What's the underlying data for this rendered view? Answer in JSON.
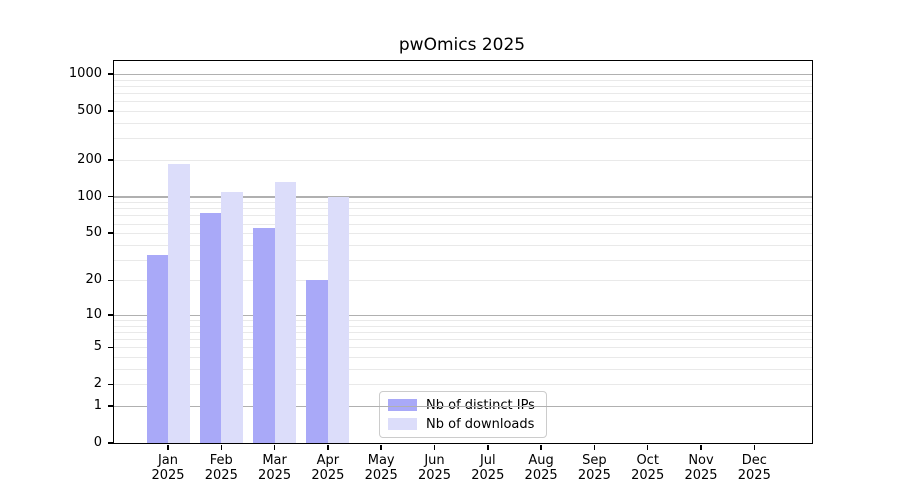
{
  "title": "pwOmics 2025",
  "colors": {
    "distinct_ips": "#a9a9f8",
    "downloads": "#dcddfa",
    "grid_major": "#b0b0b0",
    "grid_minor": "#e9e9e9",
    "axis": "#000000",
    "legend_border": "#cccccc"
  },
  "legend": {
    "items": [
      {
        "label": "Nb of distinct IPs",
        "color": "#a9a9f8"
      },
      {
        "label": "Nb of downloads",
        "color": "#dcddfa"
      }
    ]
  },
  "chart_data": {
    "type": "bar",
    "title": "pwOmics 2025",
    "scale": "log1p",
    "categories": [
      "Jan 2025",
      "Feb 2025",
      "Mar 2025",
      "Apr 2025",
      "May 2025",
      "Jun 2025",
      "Jul 2025",
      "Aug 2025",
      "Sep 2025",
      "Oct 2025",
      "Nov 2025",
      "Dec 2025"
    ],
    "x_tick_months": [
      "Jan",
      "Feb",
      "Mar",
      "Apr",
      "May",
      "Jun",
      "Jul",
      "Aug",
      "Sep",
      "Oct",
      "Nov",
      "Dec"
    ],
    "x_tick_year": "2025",
    "series": [
      {
        "name": "Nb of distinct IPs",
        "color": "#a9a9f8",
        "values": [
          33,
          73,
          55,
          20,
          null,
          null,
          null,
          null,
          null,
          null,
          null,
          null
        ]
      },
      {
        "name": "Nb of downloads",
        "color": "#dcddfa",
        "values": [
          184,
          110,
          133,
          100,
          null,
          null,
          null,
          null,
          null,
          null,
          null,
          null
        ]
      }
    ],
    "y_ticks": [
      0,
      1,
      2,
      5,
      10,
      20,
      50,
      100,
      200,
      500,
      1000
    ],
    "y_major_gridlines": [
      1,
      10,
      100,
      1000
    ],
    "ylim": [
      0,
      1000
    ],
    "xlabel": "",
    "ylabel": "",
    "grid": "horizontal",
    "legend_position": "inside-bottom-center"
  }
}
